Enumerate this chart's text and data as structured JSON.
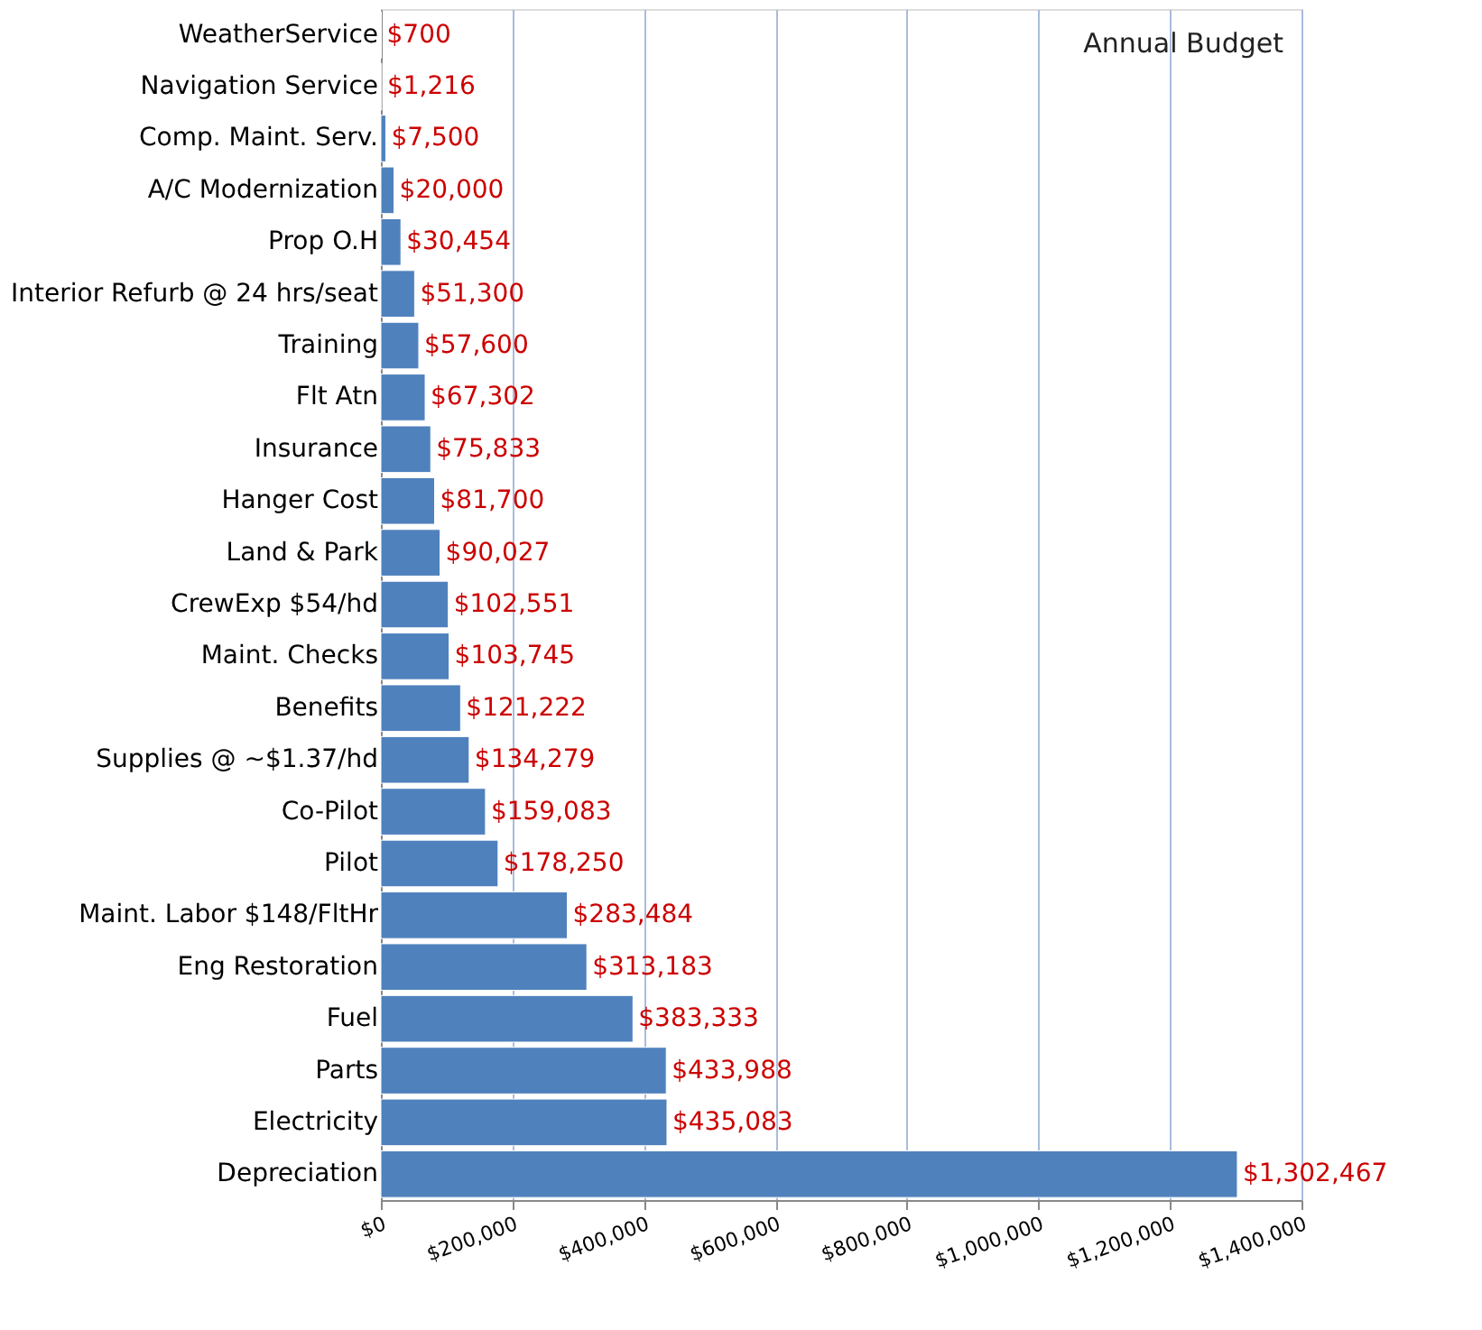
{
  "chart_data": {
    "type": "bar",
    "orientation": "horizontal",
    "title": "Annual Budget",
    "categories": [
      "WeatherService",
      "Navigation Service",
      "Comp. Maint. Serv.",
      "A/C Modernization",
      "Prop O.H",
      "Interior Refurb @ 24 hrs/seat",
      "Training",
      "Flt Atn",
      "Insurance",
      "Hanger Cost",
      "Land & Park",
      "CrewExp $54/hd",
      "Maint. Checks",
      "Benefits",
      "Supplies @ ~$1.37/hd",
      "Co-Pilot",
      "Pilot",
      "Maint. Labor  $148/FltHr",
      "Eng Restoration",
      "Fuel",
      "Parts",
      "Electricity",
      "Depreciation"
    ],
    "values": [
      700,
      1216,
      7500,
      20000,
      30454,
      51300,
      57600,
      67302,
      75833,
      81700,
      90027,
      102551,
      103745,
      121222,
      134279,
      159083,
      178250,
      283484,
      313183,
      383333,
      433988,
      435083,
      1302467
    ],
    "value_labels": [
      "$700",
      "$1,216",
      "$7,500",
      "$20,000",
      "$30,454",
      "$51,300",
      "$57,600",
      "$67,302",
      "$75,833",
      "$81,700",
      "$90,027",
      "$102,551",
      "$103,745",
      "$121,222",
      "$134,279",
      "$159,083",
      "$178,250",
      "$283,484",
      "$313,183",
      "$383,333",
      "$433,988",
      "$435,083",
      "$1,302,467"
    ],
    "color": "#4f81bd",
    "xlim": [
      0,
      1400000
    ],
    "xticks": [
      {
        "value": 0,
        "label": "$0"
      },
      {
        "value": 200000,
        "label": "$200,000"
      },
      {
        "value": 400000,
        "label": "$400,000"
      },
      {
        "value": 600000,
        "label": "$600,000"
      },
      {
        "value": 800000,
        "label": "$800,000"
      },
      {
        "value": 1000000,
        "label": "$1,000,000"
      },
      {
        "value": 1200000,
        "label": "$1,200,000"
      },
      {
        "value": 1400000,
        "label": "$1,400,000"
      }
    ],
    "grid": "x"
  }
}
